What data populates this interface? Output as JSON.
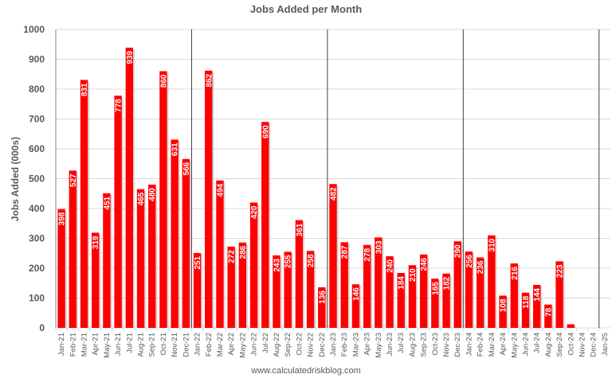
{
  "chart_data": {
    "type": "bar",
    "title": "Jobs Added per Month",
    "xlabel": "",
    "ylabel": "Jobs Added (000s)",
    "ylim": [
      0,
      1000
    ],
    "yticks": [
      0,
      100,
      200,
      300,
      400,
      500,
      600,
      700,
      800,
      900,
      1000
    ],
    "grid": true,
    "legend": null,
    "bar_color": "#ff0000",
    "year_dividers": [
      "Jan-22",
      "Jan-23",
      "Jan-24",
      "Jan-25"
    ],
    "categories": [
      "Jan-21",
      "Feb-21",
      "Mar-21",
      "Apr-21",
      "May-21",
      "Jun-21",
      "Jul-21",
      "Aug-21",
      "Sep-21",
      "Oct-21",
      "Nov-21",
      "Dec-21",
      "Jan-22",
      "Feb-22",
      "Mar-22",
      "Apr-22",
      "May-22",
      "Jun-22",
      "Jul-22",
      "Aug-22",
      "Sep-22",
      "Oct-22",
      "Nov-22",
      "Dec-22",
      "Jan-23",
      "Feb-23",
      "Mar-23",
      "Apr-23",
      "May-23",
      "Jun-23",
      "Jul-23",
      "Aug-23",
      "Sep-23",
      "Oct-23",
      "Nov-23",
      "Dec-23",
      "Jan-24",
      "Feb-24",
      "Mar-24",
      "Apr-24",
      "May-24",
      "Jun-24",
      "Jul-24",
      "Aug-24",
      "Sep-24",
      "Oct-24",
      "Nov-24",
      "Dec-24",
      "Jan-25"
    ],
    "values": [
      398,
      527,
      831,
      319,
      451,
      778,
      939,
      465,
      480,
      860,
      631,
      566,
      251,
      862,
      494,
      272,
      286,
      420,
      690,
      243,
      255,
      361,
      258,
      136,
      482,
      287,
      146,
      278,
      303,
      240,
      184,
      210,
      246,
      165,
      182,
      290,
      256,
      236,
      310,
      108,
      216,
      118,
      144,
      78,
      223,
      12,
      null,
      null,
      null
    ],
    "labels_shown": [
      true,
      true,
      true,
      true,
      true,
      true,
      true,
      true,
      true,
      true,
      true,
      true,
      true,
      true,
      true,
      true,
      true,
      true,
      true,
      true,
      true,
      true,
      true,
      true,
      true,
      true,
      true,
      true,
      true,
      true,
      true,
      true,
      true,
      true,
      true,
      true,
      true,
      true,
      true,
      true,
      true,
      true,
      true,
      true,
      true,
      false,
      false,
      false,
      false
    ]
  },
  "footer": "www.calculatedriskblog.com"
}
